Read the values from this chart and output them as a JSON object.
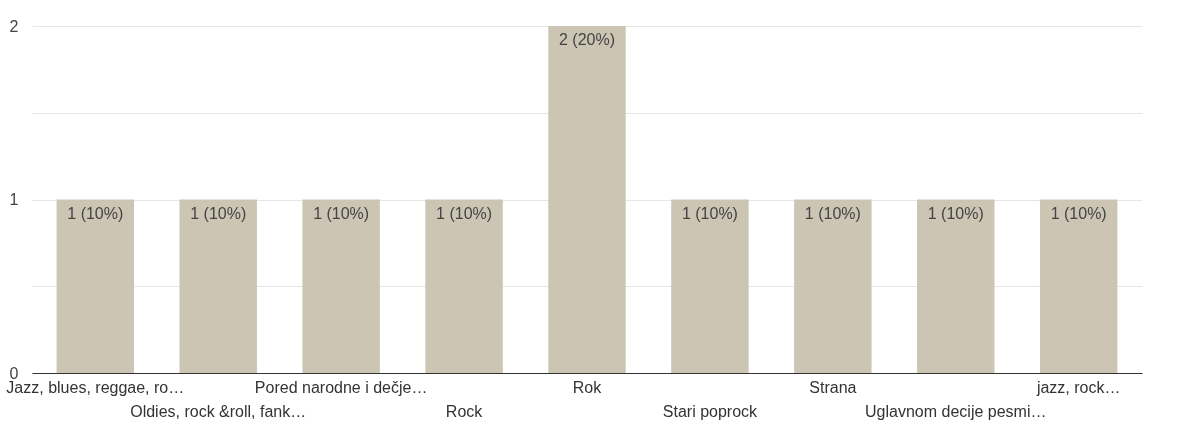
{
  "chart_data": {
    "type": "bar",
    "categories": [
      "Jazz, blues, reggae, ro…",
      "Oldies, rock &roll, fank…",
      "Pored narodne i dečje…",
      "Rock",
      "Rok",
      "Stari poprock",
      "Strana",
      "Uglavnom decije pesmi…",
      "jazz, rock…"
    ],
    "values": [
      1,
      1,
      1,
      1,
      2,
      1,
      1,
      1,
      1
    ],
    "value_labels": [
      "1 (10%)",
      "1 (10%)",
      "1 (10%)",
      "1 (10%)",
      "2 (20%)",
      "1 (10%)",
      "1 (10%)",
      "1 (10%)",
      "1 (10%)"
    ],
    "color": "#cdc5b4",
    "ylim": [
      0,
      2
    ],
    "yticks": [
      0,
      {
        "value": 0.5,
        "label": null
      },
      1,
      {
        "value": 1.5,
        "label": null
      },
      2
    ],
    "grid": true
  }
}
